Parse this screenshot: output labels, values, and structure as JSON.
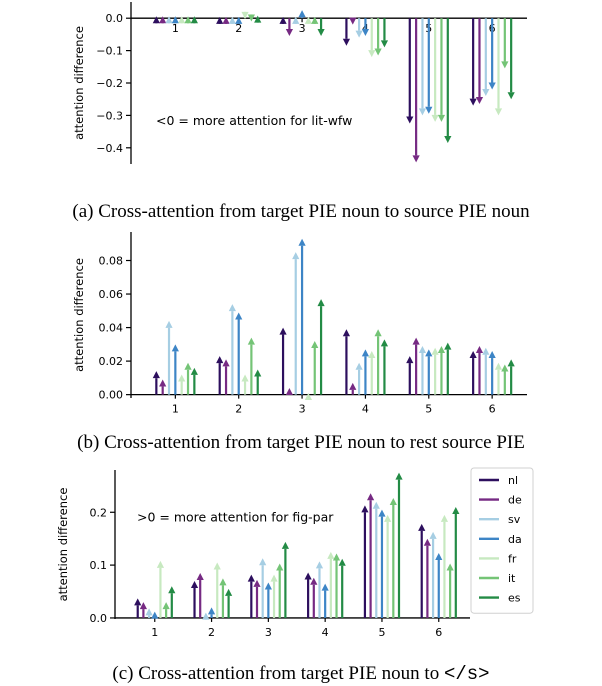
{
  "colors": {
    "nl": "#2d0f5e",
    "de": "#762a83",
    "sv": "#a6cee3",
    "da": "#3d85c6",
    "fr": "#c7e9c0",
    "it": "#74c476",
    "es": "#238b45"
  },
  "chart_data": [
    {
      "type": "bar",
      "categories": [
        "1",
        "2",
        "3",
        "4",
        "5",
        "6"
      ],
      "ylabel": "attention difference",
      "ylim": [
        -0.45,
        0.05
      ],
      "yticks": [
        0.0,
        -0.1,
        -0.2,
        -0.3,
        -0.4
      ],
      "ytick_labels": [
        "0.0",
        "−0.1",
        "−0.2",
        "−0.3",
        "−0.4"
      ],
      "annotation": "<0 = more attention for lit-wfw",
      "series": [
        {
          "name": "nl",
          "values": [
            0.006,
            0.004,
            0.004,
            -0.085,
            -0.325,
            -0.27
          ]
        },
        {
          "name": "de",
          "values": [
            0.006,
            0.004,
            -0.055,
            -0.02,
            -0.445,
            -0.265
          ]
        },
        {
          "name": "sv",
          "values": [
            0.006,
            0.004,
            0.004,
            -0.06,
            -0.3,
            -0.24
          ]
        },
        {
          "name": "da",
          "values": [
            0.006,
            0.004,
            0.025,
            -0.055,
            -0.295,
            -0.22
          ]
        },
        {
          "name": "fr",
          "values": [
            0.006,
            -0.002,
            0.004,
            -0.12,
            -0.32,
            -0.3
          ]
        },
        {
          "name": "it",
          "values": [
            0.006,
            -0.01,
            0.004,
            -0.115,
            -0.32,
            -0.155
          ]
        },
        {
          "name": "es",
          "values": [
            0.006,
            0.008,
            -0.055,
            -0.09,
            -0.385,
            -0.25
          ]
        }
      ]
    },
    {
      "type": "bar",
      "categories": [
        "1",
        "2",
        "3",
        "4",
        "5",
        "6"
      ],
      "ylabel": "attention difference",
      "ylim": [
        -0.002,
        0.097
      ],
      "yticks": [
        0.0,
        0.02,
        0.04,
        0.06,
        0.08
      ],
      "ytick_labels": [
        "0.00",
        "0.02",
        "0.04",
        "0.06",
        "0.08"
      ],
      "series": [
        {
          "name": "nl",
          "values": [
            0.014,
            0.023,
            0.04,
            0.039,
            0.023,
            0.026
          ]
        },
        {
          "name": "de",
          "values": [
            0.009,
            0.021,
            0.004,
            0.007,
            0.034,
            0.029
          ]
        },
        {
          "name": "sv",
          "values": [
            0.044,
            0.054,
            0.085,
            0.019,
            0.029,
            0.028
          ]
        },
        {
          "name": "da",
          "values": [
            0.03,
            0.049,
            0.093,
            0.027,
            0.027,
            0.026
          ]
        },
        {
          "name": "fr",
          "values": [
            0.012,
            0.012,
            0.001,
            0.026,
            0.028,
            0.019
          ]
        },
        {
          "name": "it",
          "values": [
            0.019,
            0.034,
            0.032,
            0.039,
            0.029,
            0.018
          ]
        },
        {
          "name": "es",
          "values": [
            0.016,
            0.015,
            0.057,
            0.033,
            0.031,
            0.021
          ]
        }
      ]
    },
    {
      "type": "bar",
      "categories": [
        "1",
        "2",
        "3",
        "4",
        "5",
        "6"
      ],
      "ylabel": "attention difference",
      "ylim": [
        -0.002,
        0.28
      ],
      "yticks": [
        0.0,
        0.1,
        0.2
      ],
      "ytick_labels": [
        "0.0",
        "0.1",
        "0.2"
      ],
      "annotation": ">0 = more attention for fig-par",
      "legend": "right",
      "series": [
        {
          "name": "nl",
          "values": [
            0.037,
            0.07,
            0.082,
            0.086,
            0.213,
            0.178
          ]
        },
        {
          "name": "de",
          "values": [
            0.03,
            0.085,
            0.072,
            0.076,
            0.236,
            0.15
          ]
        },
        {
          "name": "sv",
          "values": [
            0.018,
            0.01,
            0.113,
            0.107,
            0.22,
            0.163
          ]
        },
        {
          "name": "da",
          "values": [
            0.012,
            0.02,
            0.067,
            0.065,
            0.205,
            0.123
          ]
        },
        {
          "name": "fr",
          "values": [
            0.108,
            0.105,
            0.082,
            0.125,
            0.195,
            0.195
          ]
        },
        {
          "name": "it",
          "values": [
            0.03,
            0.075,
            0.103,
            0.122,
            0.227,
            0.103
          ]
        },
        {
          "name": "es",
          "values": [
            0.06,
            0.055,
            0.144,
            0.112,
            0.275,
            0.21
          ]
        }
      ]
    }
  ],
  "captions": [
    "(a) Cross-attention from target PIE noun to source PIE noun",
    "(b) Cross-attention from target PIE noun to rest source PIE",
    "(c) Cross-attention from target PIE noun to "
  ],
  "caption_c_code": "</s>"
}
